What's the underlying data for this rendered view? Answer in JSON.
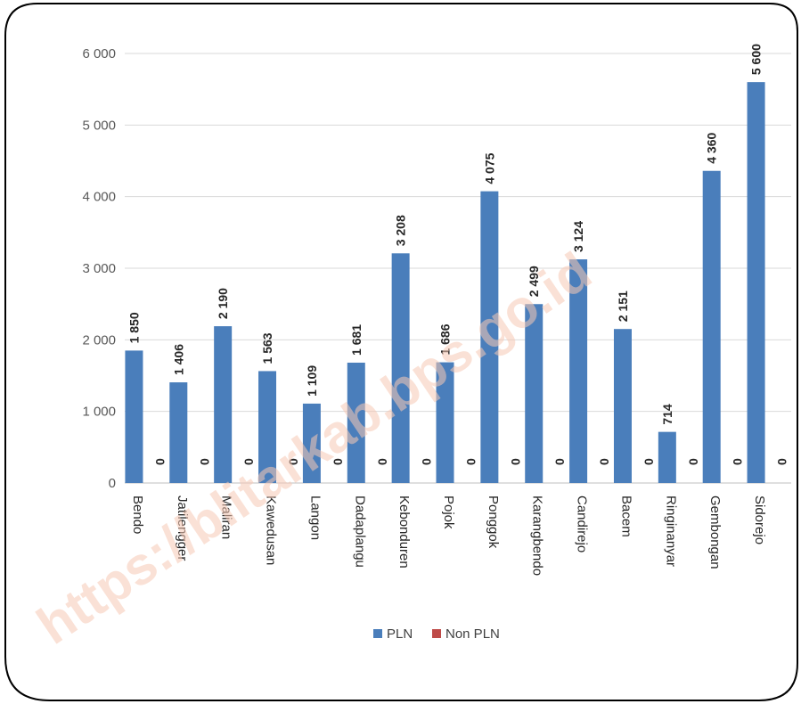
{
  "watermark": "https://blitarkab.bps.go.id",
  "colors": {
    "pln": "#4A7EBB",
    "non_pln": "#BE4B48",
    "grid": "#D9D9D9",
    "frame": "#000000"
  },
  "chart_data": {
    "type": "bar",
    "categories": [
      "Bendo",
      "Jatilengger",
      "Maliran",
      "Kawedusan",
      "Langon",
      "Dadaplangu",
      "Kebonduren",
      "Pojok",
      "Ponggok",
      "Karangbendo",
      "Candirejo",
      "Bacem",
      "Ringinanyar",
      "Gembongan",
      "Sidorejo"
    ],
    "series": [
      {
        "name": "PLN",
        "values": [
          1850,
          1406,
          2190,
          1563,
          1109,
          1681,
          3208,
          1686,
          4075,
          2499,
          3124,
          2151,
          714,
          4360,
          5600
        ]
      },
      {
        "name": "Non PLN",
        "values": [
          0,
          0,
          0,
          0,
          0,
          0,
          0,
          0,
          0,
          0,
          0,
          0,
          0,
          0,
          0
        ]
      }
    ],
    "value_labels": {
      "PLN": [
        "1 850",
        "1 406",
        "2 190",
        "1 563",
        "1 109",
        "1 681",
        "3 208",
        "1 686",
        "4 075",
        "2 499",
        "3 124",
        "2 151",
        "714",
        "4 360",
        "5 600"
      ],
      "Non PLN": [
        "0",
        "0",
        "0",
        "0",
        "0",
        "0",
        "0",
        "0",
        "0",
        "0",
        "0",
        "0",
        "0",
        "0",
        "0"
      ]
    },
    "ylim": [
      0,
      6000
    ],
    "yticks": [
      0,
      1000,
      2000,
      3000,
      4000,
      5000,
      6000
    ],
    "ytick_labels": [
      "0",
      "1 000",
      "2 000",
      "3 000",
      "4 000",
      "5 000",
      "6 000"
    ],
    "grid": true,
    "legend": "bottom",
    "title": "",
    "xlabel": "",
    "ylabel": ""
  }
}
